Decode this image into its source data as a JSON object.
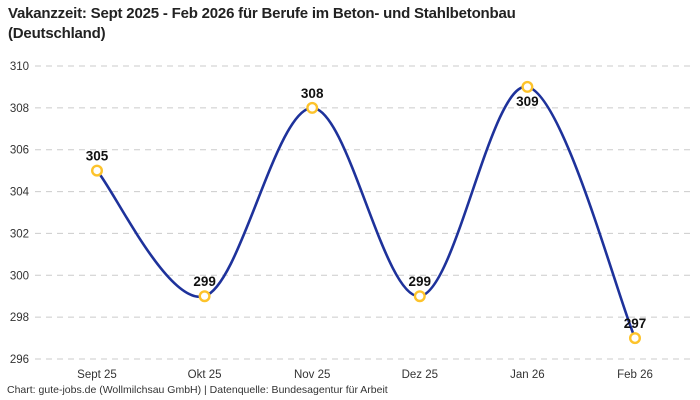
{
  "chart_data": {
    "type": "line",
    "title": "Vakanzzeit: Sept 2025 - Feb 2026 für Berufe im Beton- und Stahlbetonbau (Deutschland)",
    "categories": [
      "Sept 25",
      "Okt 25",
      "Nov 25",
      "Dez 25",
      "Jan 26",
      "Feb 26"
    ],
    "values": [
      305,
      299,
      308,
      299,
      309,
      297
    ],
    "value_label_positions": [
      "above",
      "above",
      "above",
      "above",
      "below",
      "above"
    ],
    "ylim": [
      296,
      310
    ],
    "yticks": [
      296,
      298,
      300,
      302,
      304,
      306,
      308,
      310
    ],
    "grid": "dashed-horizontal",
    "legend": "none",
    "curve": "smooth-spline",
    "line_color": "#1e329b",
    "marker_fill": "#ffffff",
    "marker_ring_color": "#fdc32b",
    "gridline_color": "#cbcbcb",
    "footer": "Chart: gute-jobs.de (Wollmilchsau GmbH) | Datenquelle: Bundesagentur für Arbeit"
  }
}
